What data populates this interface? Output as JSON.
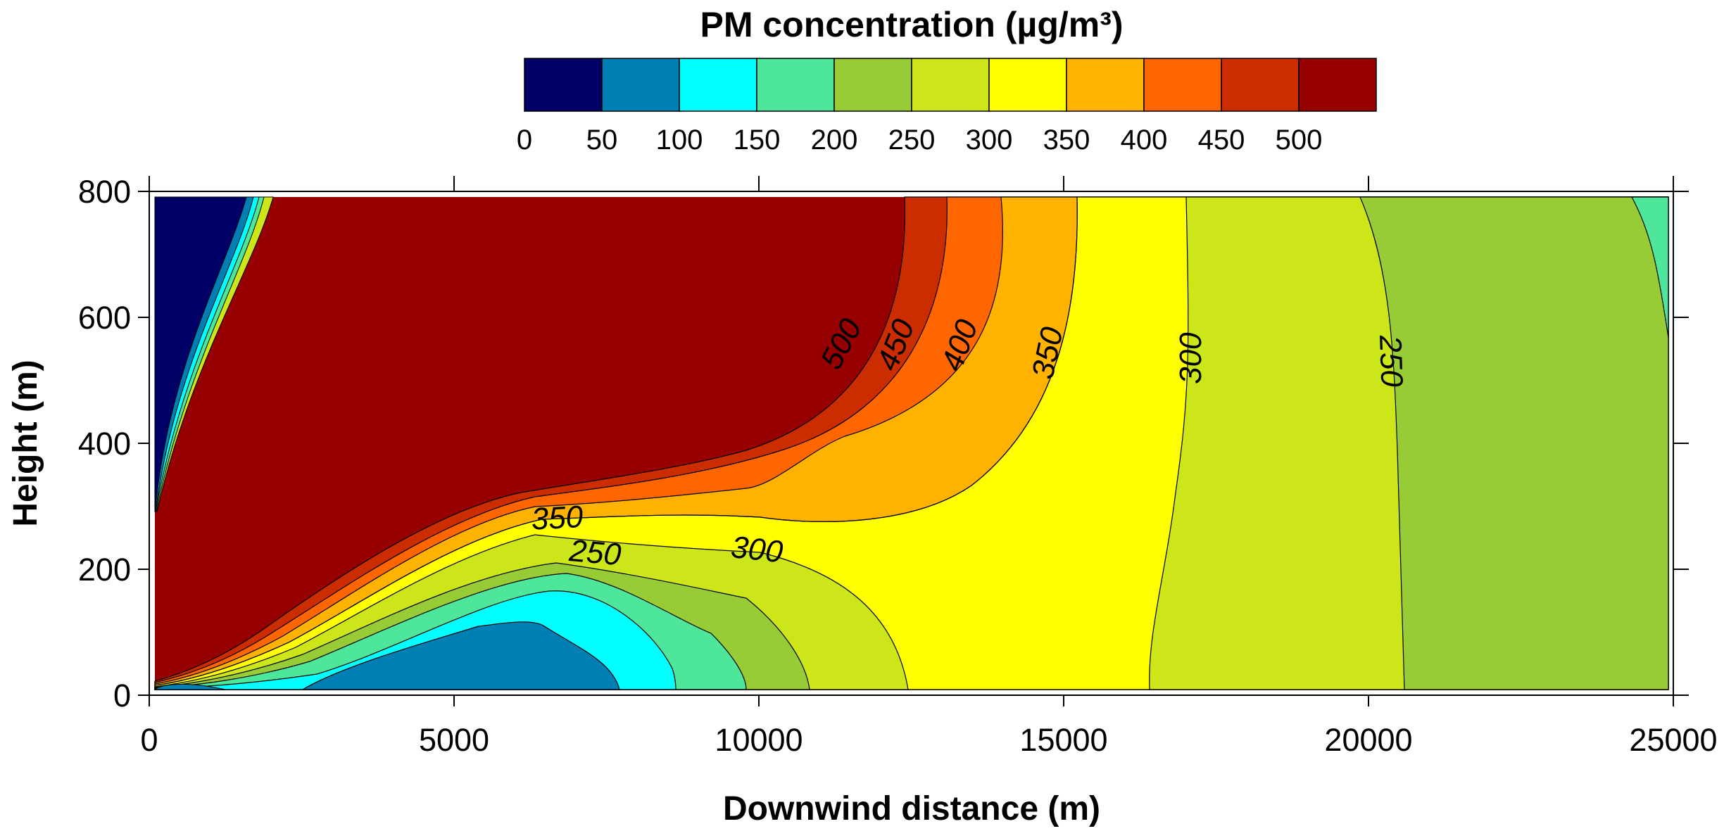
{
  "chart_data": {
    "type": "contour",
    "title": "PM concentration (µg/m³)",
    "xlabel": "Downwind distance (m)",
    "ylabel": "Height (m)",
    "xlim": [
      0,
      25000
    ],
    "ylim": [
      0,
      800
    ],
    "xticks": [
      "0",
      "5000",
      "10000",
      "15000",
      "20000",
      "25000"
    ],
    "yticks": [
      "0",
      "200",
      "400",
      "600",
      "800"
    ],
    "colorbar": {
      "ticks": [
        "0",
        "50",
        "100",
        "150",
        "200",
        "250",
        "300",
        "350",
        "400",
        "450",
        "500"
      ],
      "levels": [
        0,
        50,
        100,
        150,
        200,
        250,
        300,
        350,
        400,
        450,
        500,
        550
      ],
      "colors": [
        "#000066",
        "#007fb4",
        "#00ffff",
        "#4de69a",
        "#98cc36",
        "#cce61a",
        "#ffff00",
        "#ffb200",
        "#ff6600",
        "#cc2d00",
        "#960000"
      ]
    },
    "contour_labels": [
      {
        "text": "500",
        "x": 11500,
        "y": 550
      },
      {
        "text": "450",
        "x": 12400,
        "y": 550
      },
      {
        "text": "400",
        "x": 13450,
        "y": 550
      },
      {
        "text": "350",
        "x": 14900,
        "y": 540
      },
      {
        "text": "300",
        "x": 17250,
        "y": 535
      },
      {
        "text": "250",
        "x": 20200,
        "y": 530
      },
      {
        "text": "350",
        "x": 6700,
        "y": 265
      },
      {
        "text": "250",
        "x": 7300,
        "y": 210
      },
      {
        "text": "300",
        "x": 9950,
        "y": 215
      }
    ]
  }
}
